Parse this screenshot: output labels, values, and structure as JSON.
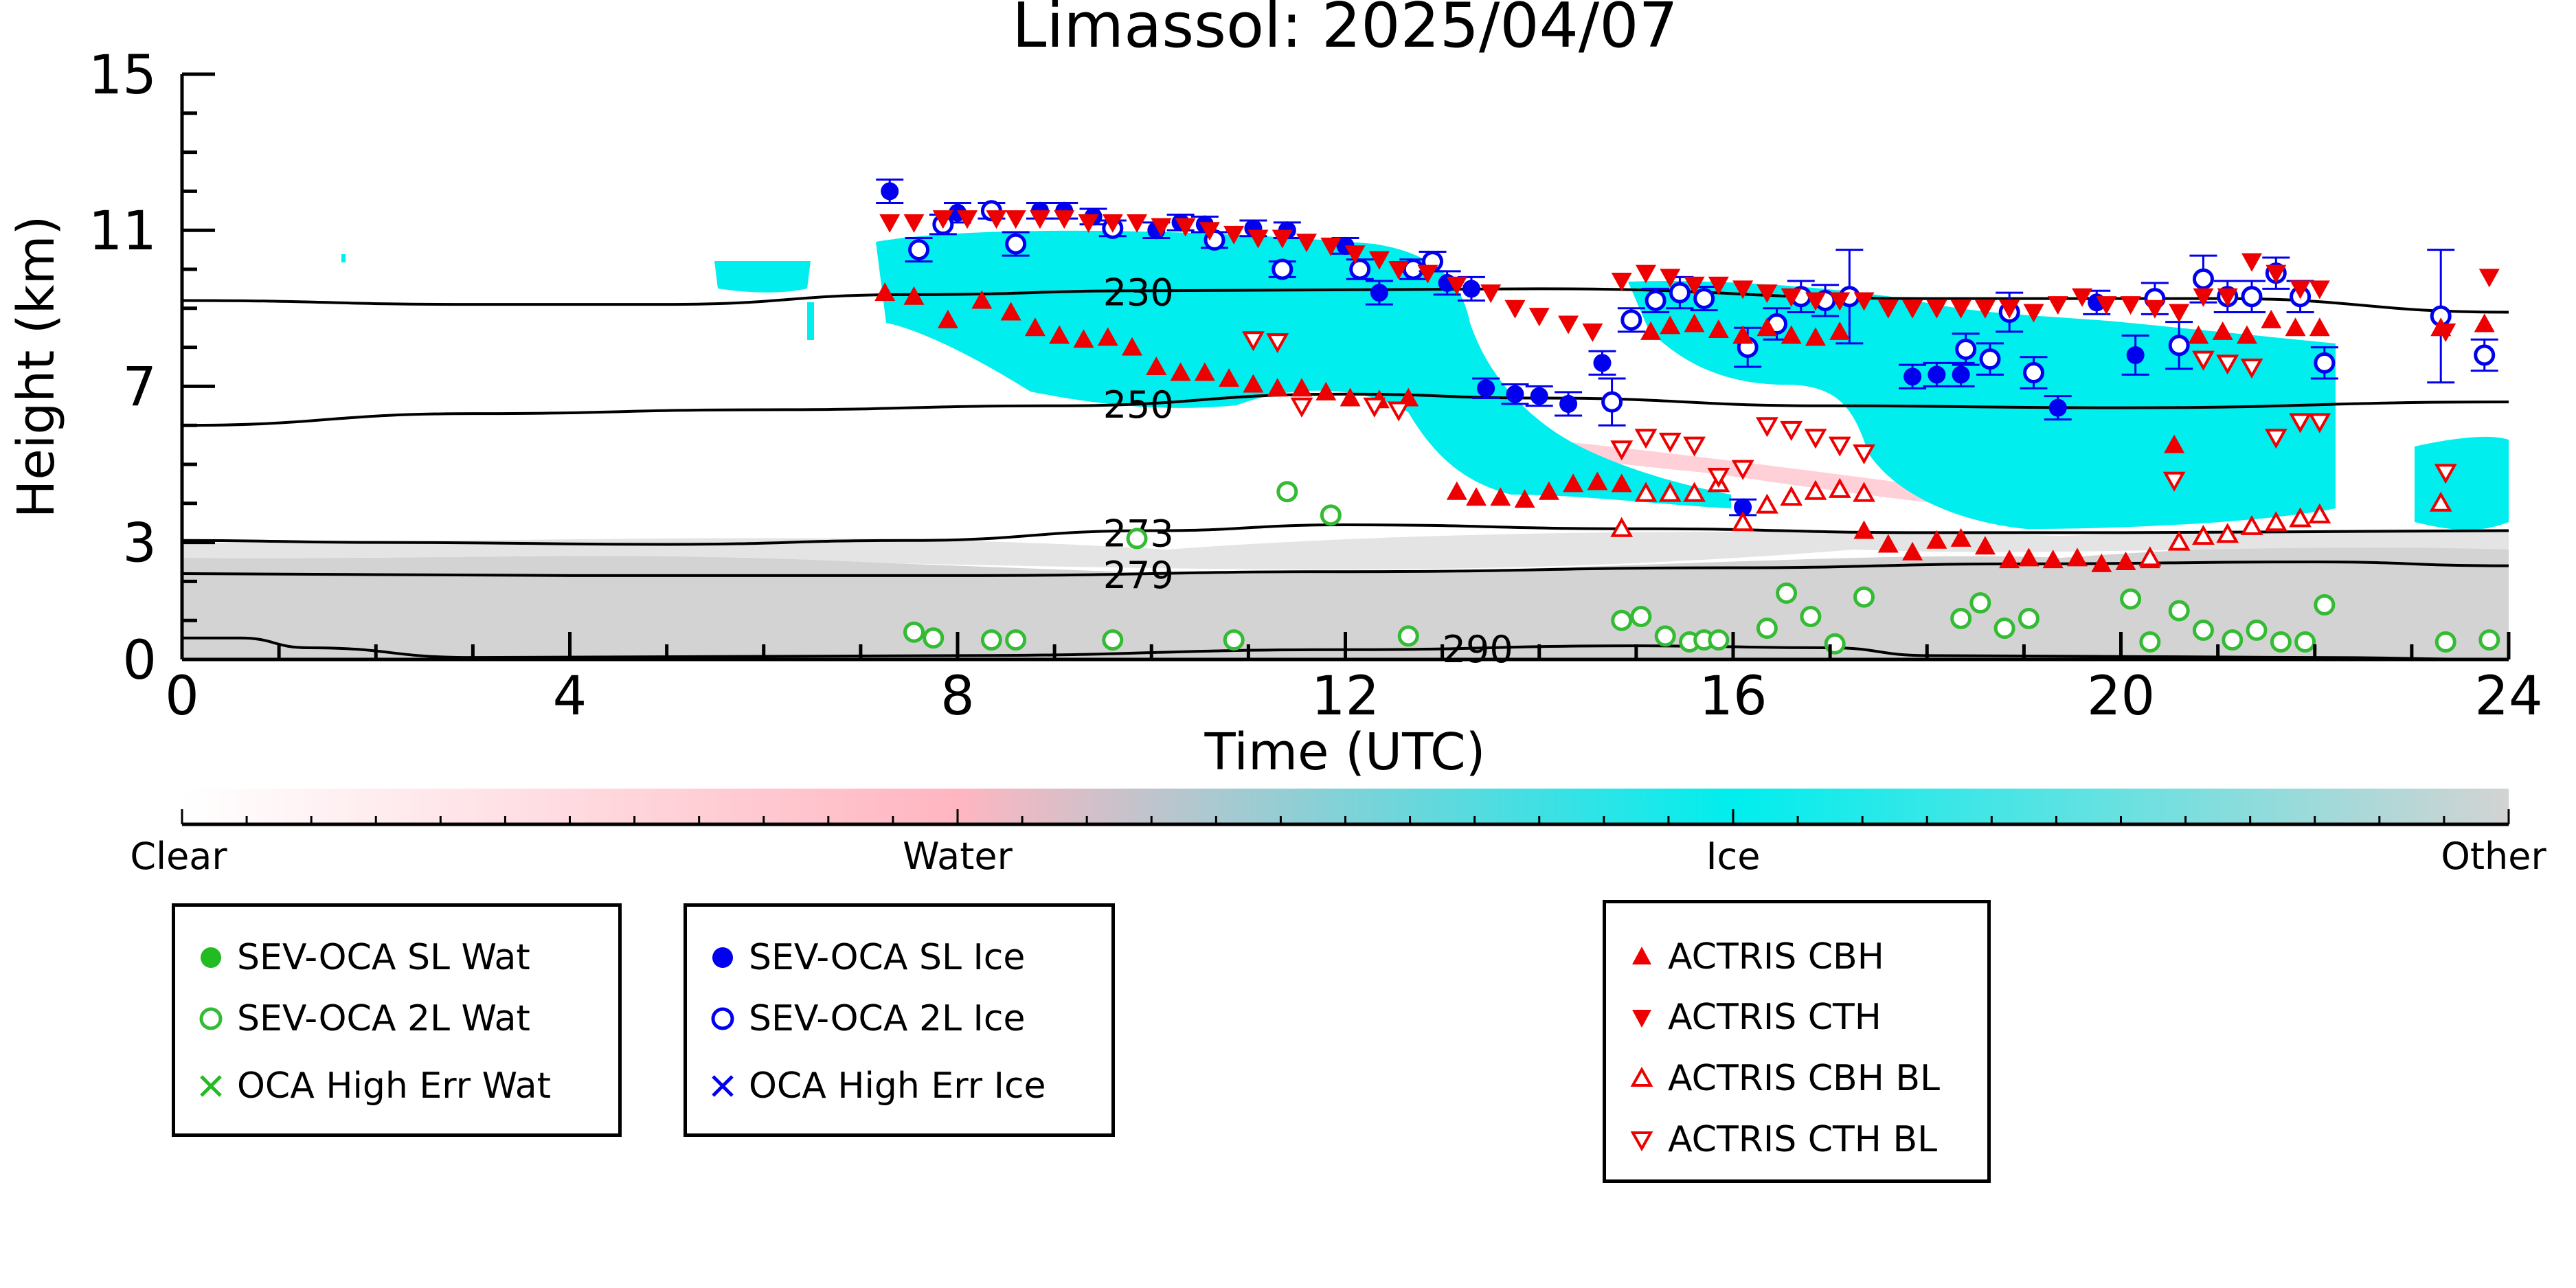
{
  "chart_data": {
    "type": "scatter",
    "title": "Limassol: 2025/04/07",
    "xlabel": "Time (UTC)",
    "ylabel": "Height (km)",
    "xlim": [
      0,
      24
    ],
    "ylim": [
      0,
      15
    ],
    "x_ticks": [
      0,
      4,
      8,
      12,
      16,
      20,
      24
    ],
    "y_ticks": [
      0,
      3,
      7,
      11,
      15
    ],
    "colorbar": {
      "labels": [
        "Clear",
        "Water",
        "Ice",
        "Other"
      ],
      "colors": [
        "#ffffff",
        "#ffb6c1",
        "#00eeee",
        "#d3d3d3"
      ]
    },
    "temperature_contours": [
      {
        "label": "230",
        "points": [
          [
            0,
            9.2
          ],
          [
            3,
            9.1
          ],
          [
            5,
            9.1
          ],
          [
            7.5,
            9.35
          ],
          [
            10,
            9.45
          ],
          [
            14,
            9.5
          ],
          [
            18,
            9.25
          ],
          [
            21,
            9.25
          ],
          [
            24,
            8.9
          ]
        ]
      },
      {
        "label": "250",
        "points": [
          [
            0,
            6.0
          ],
          [
            3,
            6.3
          ],
          [
            6,
            6.4
          ],
          [
            9,
            6.5
          ],
          [
            12,
            6.8
          ],
          [
            14,
            6.7
          ],
          [
            17,
            6.5
          ],
          [
            20,
            6.45
          ],
          [
            24,
            6.6
          ]
        ]
      },
      {
        "label": "273",
        "points": [
          [
            0,
            3.05
          ],
          [
            2,
            3.0
          ],
          [
            5,
            2.95
          ],
          [
            7.5,
            3.05
          ],
          [
            10,
            3.3
          ],
          [
            12,
            3.45
          ],
          [
            15,
            3.35
          ],
          [
            18,
            3.25
          ],
          [
            20,
            3.25
          ],
          [
            24,
            3.3
          ]
        ]
      },
      {
        "label": "279",
        "points": [
          [
            0,
            2.2
          ],
          [
            4,
            2.15
          ],
          [
            8,
            2.15
          ],
          [
            12,
            2.25
          ],
          [
            16,
            2.35
          ],
          [
            19,
            2.45
          ],
          [
            22,
            2.5
          ],
          [
            24,
            2.4
          ]
        ]
      },
      {
        "label": "290",
        "points": [
          [
            0,
            0.55
          ],
          [
            0.6,
            0.55
          ],
          [
            1.3,
            0.3
          ],
          [
            3,
            0.05
          ],
          [
            8,
            0.1
          ],
          [
            12,
            0.25
          ],
          [
            15,
            0.35
          ],
          [
            17,
            0.3
          ],
          [
            18,
            0.1
          ],
          [
            22,
            0.05
          ],
          [
            24,
            0.0
          ]
        ]
      }
    ],
    "series": [
      {
        "name": "SEV-OCA SL Wat",
        "color": "#22bb22",
        "marker": "filled-circle",
        "x": [],
        "y": []
      },
      {
        "name": "SEV-OCA 2L Wat",
        "color": "#33bb33",
        "marker": "open-circle",
        "x": [
          7.55,
          7.75,
          8.35,
          8.6,
          9.6,
          9.85,
          10.85,
          11.4,
          11.85,
          12.65,
          14.85,
          15.05,
          15.3,
          15.55,
          15.7,
          15.85,
          16.35,
          16.55,
          16.8,
          17.05,
          17.35,
          18.35,
          18.55,
          18.8,
          19.05,
          20.1,
          20.3,
          20.6,
          20.85,
          21.15,
          21.4,
          21.65,
          21.9,
          22.1,
          23.35,
          23.8
        ],
        "y": [
          0.7,
          0.55,
          0.5,
          0.5,
          0.5,
          3.1,
          0.5,
          4.3,
          3.7,
          0.6,
          1.0,
          1.1,
          0.6,
          0.45,
          0.5,
          0.5,
          0.8,
          1.7,
          1.1,
          0.4,
          1.6,
          1.05,
          1.45,
          0.8,
          1.05,
          1.55,
          0.45,
          1.25,
          0.75,
          0.5,
          0.75,
          0.45,
          0.45,
          1.4,
          0.45,
          0.5
        ]
      },
      {
        "name": "OCA High Err Wat",
        "color": "#22bb22",
        "marker": "x",
        "x": [],
        "y": []
      },
      {
        "name": "SEV-OCA SL Ice",
        "color": "#0000ee",
        "marker": "filled-circle",
        "x": [
          7.3,
          8.0,
          8.85,
          9.1,
          9.4,
          10.05,
          10.3,
          10.55,
          11.05,
          11.4,
          12.0,
          12.35,
          13.05,
          13.3,
          13.45,
          13.75,
          14.0,
          14.3,
          14.65,
          16.1,
          17.85,
          18.1,
          18.35,
          19.35,
          19.75,
          20.15
        ],
        "y": [
          12.0,
          11.45,
          11.5,
          11.5,
          11.35,
          11.0,
          11.2,
          11.15,
          11.05,
          11.0,
          10.6,
          9.4,
          9.65,
          9.5,
          6.95,
          6.8,
          6.75,
          6.55,
          7.6,
          3.9,
          7.25,
          7.3,
          7.3,
          6.45,
          9.15,
          7.8
        ],
        "yerr": [
          0.3,
          0.25,
          0.2,
          0.2,
          0.2,
          0.2,
          0.2,
          0.2,
          0.2,
          0.2,
          0.2,
          0.3,
          0.3,
          0.3,
          0.25,
          0.25,
          0.25,
          0.3,
          0.3,
          0.2,
          0.3,
          0.3,
          0.3,
          0.3,
          0.3,
          0.5
        ]
      },
      {
        "name": "SEV-OCA 2L Ice",
        "color": "#0000ee",
        "marker": "open-circle",
        "x": [
          7.6,
          7.85,
          8.35,
          8.6,
          9.6,
          10.65,
          11.35,
          12.15,
          12.7,
          12.9,
          14.75,
          14.95,
          15.2,
          15.45,
          15.7,
          16.15,
          16.45,
          16.7,
          16.95,
          17.2,
          18.4,
          18.65,
          18.85,
          19.1,
          20.35,
          20.6,
          20.85,
          21.1,
          21.35,
          21.6,
          21.85,
          22.1,
          23.3,
          23.75
        ],
        "y": [
          10.5,
          11.15,
          11.5,
          10.65,
          11.05,
          10.75,
          10.0,
          10.0,
          10.0,
          10.2,
          6.6,
          8.7,
          9.2,
          9.4,
          9.25,
          8.0,
          8.6,
          9.3,
          9.2,
          9.3,
          7.95,
          7.7,
          8.9,
          7.35,
          9.25,
          8.05,
          9.75,
          9.3,
          9.3,
          9.9,
          9.3,
          7.6,
          8.8,
          7.8
        ],
        "yerr": [
          0.3,
          0.25,
          0.2,
          0.3,
          0.2,
          0.2,
          0.2,
          0.25,
          0.25,
          0.25,
          0.6,
          0.3,
          0.3,
          0.4,
          0.3,
          0.5,
          0.4,
          0.4,
          0.4,
          1.2,
          0.4,
          0.4,
          0.5,
          0.4,
          0.4,
          0.6,
          0.6,
          0.4,
          0.4,
          0.4,
          0.4,
          0.4,
          1.7,
          0.4
        ]
      },
      {
        "name": "OCA High Err Ice",
        "color": "#0000ee",
        "marker": "x",
        "x": [],
        "y": []
      },
      {
        "name": "ACTRIS CBH",
        "color": "#ee0000",
        "marker": "filled-triangle-up",
        "x": [
          7.25,
          7.55,
          7.9,
          8.25,
          8.55,
          8.8,
          9.05,
          9.3,
          9.55,
          9.8,
          10.05,
          10.3,
          10.55,
          10.8,
          11.05,
          11.3,
          11.55,
          11.8,
          12.05,
          12.35,
          12.65,
          13.15,
          13.35,
          13.6,
          13.85,
          14.1,
          14.35,
          14.6,
          14.85,
          15.15,
          15.35,
          15.6,
          15.85,
          16.1,
          16.35,
          16.6,
          16.85,
          17.1,
          17.35,
          17.6,
          17.85,
          18.1,
          18.35,
          18.6,
          18.85,
          19.05,
          19.3,
          19.55,
          19.8,
          20.05,
          20.3,
          20.55,
          20.8,
          21.05,
          21.3,
          21.55,
          21.8,
          22.05,
          23.3,
          23.75
        ],
        "y": [
          9.4,
          9.3,
          8.7,
          9.2,
          8.9,
          8.5,
          8.3,
          8.2,
          8.25,
          8.0,
          7.5,
          7.35,
          7.35,
          7.2,
          7.05,
          6.95,
          6.95,
          6.85,
          6.7,
          6.65,
          6.7,
          4.3,
          4.15,
          4.15,
          4.1,
          4.3,
          4.5,
          4.55,
          4.5,
          8.4,
          8.55,
          8.6,
          8.45,
          8.3,
          8.5,
          8.3,
          8.25,
          8.4,
          3.3,
          2.95,
          2.75,
          3.05,
          3.1,
          2.9,
          2.55,
          2.6,
          2.55,
          2.6,
          2.45,
          2.5,
          2.55,
          5.5,
          8.3,
          8.4,
          8.3,
          8.7,
          8.5,
          8.5,
          8.5,
          8.6
        ],
        "yerr": []
      },
      {
        "name": "ACTRIS CTH",
        "color": "#ee0000",
        "marker": "filled-triangle-down",
        "x": [
          7.3,
          7.55,
          7.85,
          8.1,
          8.4,
          8.6,
          8.85,
          9.1,
          9.35,
          9.6,
          9.85,
          10.1,
          10.35,
          10.6,
          10.85,
          11.1,
          11.35,
          11.6,
          11.85,
          12.1,
          12.35,
          12.55,
          12.85,
          13.15,
          13.5,
          13.75,
          14.0,
          14.3,
          14.55,
          14.85,
          15.1,
          15.35,
          15.6,
          15.85,
          16.1,
          16.35,
          16.6,
          16.85,
          17.1,
          17.35,
          17.6,
          17.85,
          18.1,
          18.35,
          18.6,
          18.85,
          19.1,
          19.35,
          19.6,
          19.85,
          20.1,
          20.35,
          20.6,
          20.85,
          21.1,
          21.35,
          21.6,
          21.85,
          22.05,
          23.35,
          23.8
        ],
        "y": [
          11.2,
          11.2,
          11.3,
          11.3,
          11.3,
          11.3,
          11.3,
          11.3,
          11.2,
          11.2,
          11.2,
          11.1,
          11.1,
          11.0,
          10.9,
          10.8,
          10.8,
          10.7,
          10.6,
          10.4,
          10.25,
          10.0,
          9.9,
          9.6,
          9.4,
          9.0,
          8.8,
          8.6,
          8.4,
          9.7,
          9.9,
          9.8,
          9.6,
          9.6,
          9.5,
          9.4,
          9.3,
          9.2,
          9.2,
          9.2,
          9.0,
          9.0,
          9.0,
          9.0,
          9.0,
          9.0,
          8.9,
          9.1,
          9.3,
          9.1,
          9.1,
          9.0,
          8.9,
          9.3,
          9.3,
          10.2,
          9.9,
          9.5,
          9.5,
          8.4,
          9.8
        ],
        "yerr": []
      },
      {
        "name": "ACTRIS CBH BL",
        "color": "#ee0000",
        "marker": "open-triangle-up",
        "x": [
          14.85,
          15.1,
          15.35,
          15.6,
          15.85,
          16.1,
          16.35,
          16.6,
          16.85,
          17.1,
          17.35,
          20.3,
          20.6,
          20.85,
          21.1,
          21.35,
          21.6,
          21.85,
          22.05,
          23.3
        ],
        "y": [
          3.35,
          4.25,
          4.25,
          4.25,
          4.5,
          3.5,
          3.95,
          4.15,
          4.3,
          4.35,
          4.25,
          2.6,
          3.0,
          3.15,
          3.2,
          3.4,
          3.5,
          3.6,
          3.7,
          4.0
        ],
        "yerr": []
      },
      {
        "name": "ACTRIS CTH BL",
        "color": "#ee0000",
        "marker": "open-triangle-down",
        "x": [
          11.05,
          11.3,
          11.55,
          12.3,
          12.55,
          14.85,
          15.1,
          15.35,
          15.6,
          15.85,
          16.1,
          16.35,
          16.6,
          16.85,
          17.1,
          17.35,
          20.55,
          20.85,
          21.1,
          21.35,
          21.6,
          21.85,
          22.05,
          23.35
        ],
        "y": [
          8.2,
          8.15,
          6.5,
          6.5,
          6.4,
          5.4,
          5.7,
          5.6,
          5.5,
          4.7,
          4.9,
          6.0,
          5.9,
          5.7,
          5.5,
          5.3,
          4.6,
          7.7,
          7.6,
          7.5,
          5.7,
          6.1,
          6.1,
          4.8
        ],
        "yerr": []
      }
    ],
    "grid": false,
    "legend_placement": "below"
  },
  "legend": {
    "water": [
      "SEV-OCA SL Wat",
      "SEV-OCA 2L Wat",
      "OCA High Err Wat"
    ],
    "ice": [
      "SEV-OCA SL Ice",
      "SEV-OCA 2L Ice",
      "OCA High Err Ice"
    ],
    "actris": [
      "ACTRIS CBH",
      "ACTRIS CTH",
      "ACTRIS CBH BL",
      "ACTRIS CTH BL"
    ]
  }
}
